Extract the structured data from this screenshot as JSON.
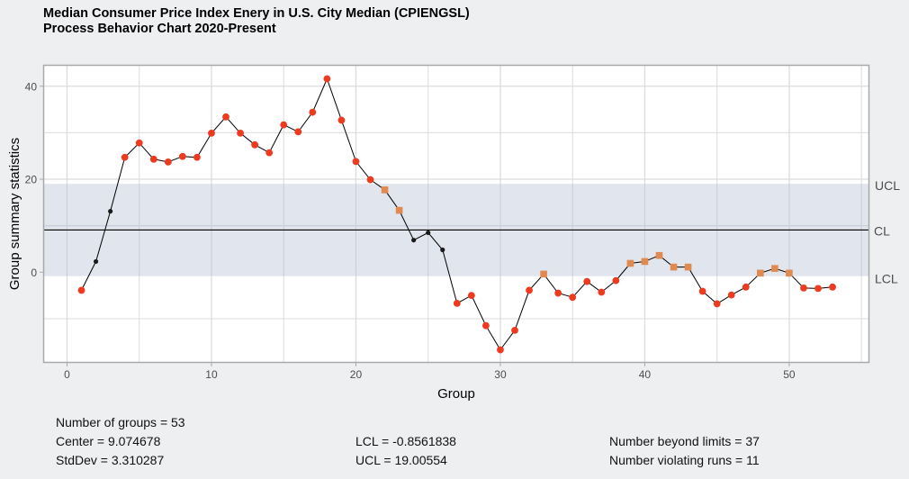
{
  "header": {
    "title_line1": "Median Consumer Price Index Enery in U.S. City Median (CPIENGSL)",
    "title_line2": "Process Behavior Chart 2020-Present"
  },
  "chart_data": {
    "type": "line",
    "title": "Median Consumer Price Index Enery in U.S. City Median (CPIENGSL) Process Behavior Chart 2020-Present",
    "xlabel": "Group",
    "ylabel": "Group summary statistics",
    "xlim": [
      -1.65,
      55.55
    ],
    "ylim": [
      -19.5,
      44.6
    ],
    "x_ticks": [
      0,
      10,
      20,
      30,
      40,
      50
    ],
    "x_tick_labels": [
      "0",
      "10",
      "20",
      "30",
      "40",
      "50"
    ],
    "x_minor_grid": [
      5,
      15,
      25,
      35,
      45,
      55
    ],
    "y_ticks": [
      0,
      20,
      40
    ],
    "y_tick_labels": [
      "0",
      "20",
      "40"
    ],
    "y_minor_grid": [
      -10,
      10,
      30
    ],
    "grid": true,
    "center": 9.074678,
    "lcl": -0.8561838,
    "ucl": 19.00554,
    "limit_labels": {
      "ucl": "UCL",
      "cl": "CL",
      "lcl": "LCL"
    },
    "x": [
      1,
      2,
      3,
      4,
      5,
      6,
      7,
      8,
      9,
      10,
      11,
      12,
      13,
      14,
      15,
      16,
      17,
      18,
      19,
      20,
      21,
      22,
      23,
      24,
      25,
      26,
      27,
      28,
      29,
      30,
      31,
      32,
      33,
      34,
      35,
      36,
      37,
      38,
      39,
      40,
      41,
      42,
      43,
      44,
      45,
      46,
      47,
      48,
      49,
      50,
      51,
      52,
      53
    ],
    "values": [
      -3.9,
      2.3,
      13.1,
      24.7,
      27.8,
      24.3,
      23.7,
      24.9,
      24.7,
      29.9,
      33.4,
      29.9,
      27.4,
      25.7,
      31.7,
      30.2,
      34.4,
      41.6,
      32.7,
      23.8,
      19.9,
      17.7,
      13.3,
      6.9,
      8.5,
      4.8,
      -6.7,
      -5.0,
      -11.5,
      -16.7,
      -12.5,
      -3.9,
      -0.4,
      -4.5,
      -5.4,
      -2.0,
      -4.3,
      -1.8,
      1.9,
      2.3,
      3.6,
      1.1,
      1.1,
      -4.1,
      -6.8,
      -4.9,
      -3.2,
      -0.2,
      0.8,
      -0.2,
      -3.4,
      -3.5,
      -3.2
    ],
    "point_status": [
      "beyond",
      "normal",
      "normal",
      "beyond",
      "beyond",
      "beyond",
      "beyond",
      "beyond",
      "beyond",
      "beyond",
      "beyond",
      "beyond",
      "beyond",
      "beyond",
      "beyond",
      "beyond",
      "beyond",
      "beyond",
      "beyond",
      "beyond",
      "beyond",
      "run",
      "run",
      "normal",
      "normal",
      "normal",
      "beyond",
      "beyond",
      "beyond",
      "beyond",
      "beyond",
      "beyond",
      "run",
      "beyond",
      "beyond",
      "beyond",
      "beyond",
      "beyond",
      "run",
      "run",
      "run",
      "run",
      "run",
      "beyond",
      "beyond",
      "beyond",
      "beyond",
      "run",
      "run",
      "run",
      "beyond",
      "beyond",
      "beyond"
    ],
    "legend": "none"
  },
  "colors": {
    "panel_bg": "#FFFFFF",
    "page_bg": "#EEEFF1",
    "grid": "#DCDCDC",
    "band": "#DFE4EC",
    "band_line": "#C8CDD6",
    "line": "#000000",
    "beyond": "#EE3A1F",
    "run": "#E08A4F",
    "normal": "#1A1A1A",
    "axis_text": "#4D4D4D"
  },
  "stats": {
    "n_groups": "Number of groups = 53",
    "center": "Center = 9.074678",
    "stddev": "StdDev = 3.310287",
    "lcl": "LCL = -0.8561838",
    "ucl": "UCL = 19.00554",
    "beyond": "Number beyond limits = 37",
    "violating": "Number violating runs = 11"
  }
}
